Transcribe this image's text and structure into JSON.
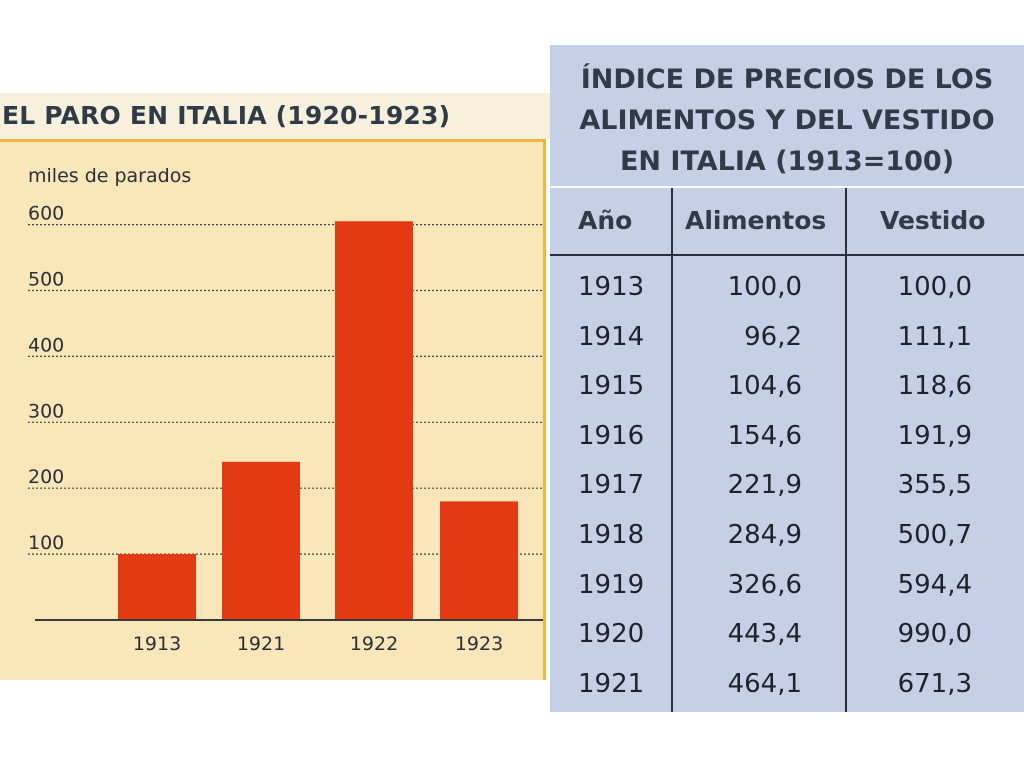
{
  "chart_data": [
    {
      "type": "bar",
      "title": "EL PARO EN ITALIA (1920-1923)",
      "ylabel": "miles de parados",
      "categories": [
        "1913",
        "1921",
        "1922",
        "1923"
      ],
      "values": [
        100,
        240,
        605,
        180
      ],
      "ylim": [
        0,
        620
      ],
      "yticks": [
        "100",
        "200",
        "300",
        "400",
        "500",
        "600"
      ],
      "grid": true,
      "colors": {
        "bar": "#e33a14",
        "background": "#f9e6b9",
        "frame": "#efb741",
        "gridline": "#444444"
      }
    },
    {
      "type": "table",
      "title_lines": [
        "ÍNDICE DE PRECIOS DE LOS",
        "ALIMENTOS Y DEL VESTIDO",
        "EN ITALIA (1913=100)"
      ],
      "columns": [
        "Año",
        "Alimentos",
        "Vestido"
      ],
      "rows": [
        [
          "1913",
          "100,0",
          "100,0"
        ],
        [
          "1914",
          "96,2",
          "111,1"
        ],
        [
          "1915",
          "104,6",
          "118,6"
        ],
        [
          "1916",
          "154,6",
          "191,9"
        ],
        [
          "1917",
          "221,9",
          "355,5"
        ],
        [
          "1918",
          "284,9",
          "500,7"
        ],
        [
          "1919",
          "326,6",
          "594,4"
        ],
        [
          "1920",
          "443,4",
          "990,0"
        ],
        [
          "1921",
          "464,1",
          "671,3"
        ]
      ],
      "colors": {
        "background": "#c5d0e6",
        "rules": "#2a2f3a"
      }
    }
  ]
}
